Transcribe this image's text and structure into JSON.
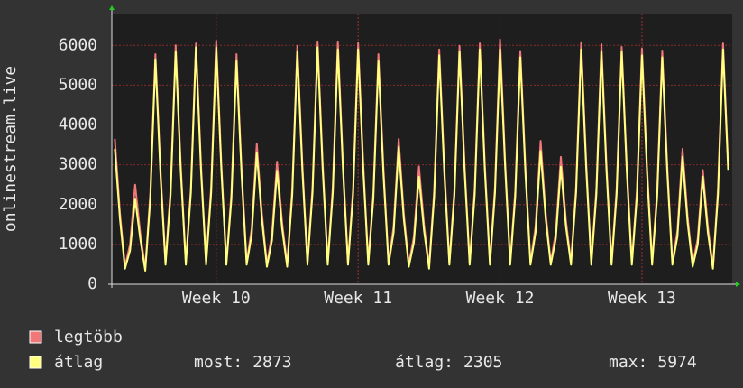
{
  "chart_data": {
    "type": "line",
    "y_label": "onlinestream.live",
    "x": [
      0.15,
      0.4,
      0.65,
      0.9,
      1.15,
      1.4,
      1.65,
      1.9,
      2.15,
      2.4,
      2.65,
      2.9,
      3.15,
      3.4,
      3.65,
      3.9,
      4.15,
      4.4,
      4.65,
      4.9,
      5.15,
      5.4,
      5.65,
      5.9,
      6.15,
      6.4,
      6.65,
      6.9,
      7.15,
      7.4,
      7.65,
      7.9,
      8.15,
      8.4,
      8.65,
      8.9,
      9.15,
      9.4,
      9.65,
      9.9,
      10.15,
      10.4,
      10.65,
      10.9,
      11.15,
      11.4,
      11.65,
      11.9,
      12.15,
      12.4,
      12.65,
      12.9,
      13.15,
      13.4,
      13.65,
      13.9,
      14.15,
      14.4,
      14.65,
      14.9,
      15.15,
      15.4,
      15.65,
      15.9,
      16.15,
      16.4,
      16.65,
      16.9,
      17.15,
      17.4,
      17.65,
      17.9,
      18.15,
      18.4,
      18.65,
      18.9,
      19.15,
      19.4,
      19.65,
      19.9,
      20.15,
      20.4,
      20.65,
      20.9,
      21.15,
      21.4,
      21.65,
      21.9,
      22.15,
      22.4,
      22.65,
      22.9,
      23.15,
      23.4,
      23.65,
      23.9,
      24.15,
      24.4,
      24.65,
      24.9,
      25.15,
      25.4,
      25.65,
      25.9,
      26.15,
      26.4,
      26.65,
      26.9,
      27.15,
      27.4,
      27.65,
      27.9,
      28.15,
      28.4,
      28.65,
      28.9,
      29.15,
      29.4,
      29.65,
      29.9,
      30.15,
      30.4
    ],
    "series": [
      {
        "name": "legtöbb",
        "color": "#f07878",
        "values": [
          3650,
          1800,
          450,
          1000,
          2500,
          1300,
          400,
          2300,
          5780,
          2900,
          550,
          2400,
          6000,
          3000,
          550,
          2400,
          6050,
          3000,
          550,
          2450,
          6120,
          3050,
          550,
          2300,
          5780,
          2900,
          550,
          1400,
          3530,
          1800,
          500,
          1250,
          3080,
          1550,
          500,
          2400,
          5990,
          3000,
          550,
          2450,
          6100,
          3050,
          550,
          2450,
          6100,
          3050,
          550,
          2400,
          6060,
          3050,
          550,
          2300,
          5780,
          2900,
          550,
          1450,
          3650,
          1800,
          500,
          1200,
          2960,
          1500,
          450,
          2350,
          5900,
          2950,
          550,
          2400,
          5990,
          3000,
          550,
          2400,
          6050,
          3000,
          550,
          2450,
          6150,
          3100,
          550,
          2350,
          5860,
          2950,
          550,
          1450,
          3600,
          1800,
          550,
          1300,
          3200,
          1600,
          550,
          2450,
          6080,
          3050,
          550,
          2400,
          6030,
          3000,
          550,
          2400,
          5960,
          3000,
          550,
          2350,
          5920,
          2950,
          550,
          2350,
          5870,
          2950,
          550,
          1350,
          3400,
          1700,
          500,
          1150,
          2870,
          1450,
          450,
          2400,
          6050,
          3000
        ]
      },
      {
        "name": "átlag",
        "color": "#ffff80",
        "values": [
          3400,
          1650,
          390,
          850,
          2150,
          1150,
          340,
          2150,
          5650,
          2750,
          490,
          2250,
          5850,
          2850,
          490,
          2300,
          5950,
          2850,
          490,
          2300,
          5950,
          2900,
          490,
          2150,
          5600,
          2750,
          490,
          1250,
          3300,
          1650,
          440,
          1100,
          2850,
          1400,
          440,
          2250,
          5850,
          2850,
          490,
          2300,
          5950,
          2900,
          490,
          2300,
          5900,
          2900,
          490,
          2250,
          5900,
          2900,
          490,
          2150,
          5600,
          2750,
          490,
          1300,
          3450,
          1650,
          440,
          1050,
          2700,
          1350,
          390,
          2200,
          5750,
          2800,
          490,
          2250,
          5850,
          2850,
          490,
          2250,
          5900,
          2850,
          490,
          2300,
          5900,
          2950,
          490,
          2200,
          5700,
          2800,
          490,
          1300,
          3350,
          1650,
          490,
          1150,
          2950,
          1450,
          490,
          2300,
          5900,
          2900,
          490,
          2250,
          5850,
          2850,
          490,
          2250,
          5850,
          2850,
          490,
          2200,
          5750,
          2800,
          490,
          2200,
          5700,
          2800,
          490,
          1200,
          3200,
          1550,
          440,
          1000,
          2700,
          1300,
          390,
          2250,
          5900,
          2873
        ]
      }
    ],
    "xlim": [
      0,
      30.6
    ],
    "xticks": [
      {
        "value": 5.15,
        "label": "Week 10"
      },
      {
        "value": 12.15,
        "label": "Week 11"
      },
      {
        "value": 19.15,
        "label": "Week 12"
      },
      {
        "value": 26.15,
        "label": "Week 13"
      }
    ],
    "ylim": [
      0,
      6800
    ],
    "yticks": [
      0,
      1000,
      2000,
      3000,
      4000,
      5000,
      6000
    ],
    "grid": true,
    "stats": [
      {
        "label": "most:",
        "value": 2873
      },
      {
        "label": "átlag:",
        "value": 2305
      },
      {
        "label": "max:",
        "value": 5974
      }
    ]
  }
}
